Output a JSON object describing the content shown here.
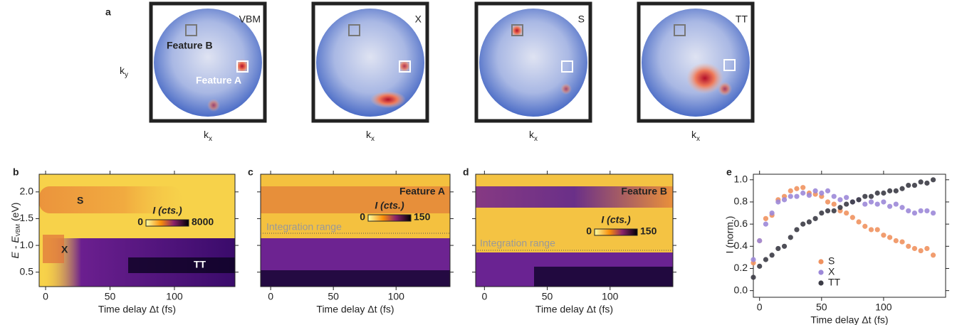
{
  "momentum_maps": {
    "panel": "a",
    "ky_label": {
      "base": "k",
      "sub": "y"
    },
    "kx_label": {
      "base": "k",
      "sub": "x"
    },
    "maps": [
      {
        "label": "VBM",
        "annotations": [
          "Feature B",
          "Feature A"
        ]
      },
      {
        "label": "X"
      },
      {
        "label": "S"
      },
      {
        "label": "TT"
      }
    ]
  },
  "chart_data": [
    {
      "type": "heatmap",
      "panel": "b",
      "xlabel": "Time delay Δt (fs)",
      "ylabel": [
        "E - E",
        "VBM",
        "(eV)"
      ],
      "xlim": [
        -5,
        147
      ],
      "xticks": [
        0,
        50,
        100
      ],
      "ylim": [
        0.23,
        2.33
      ],
      "yticks": [
        0.5,
        {
          "value": 1,
          "label": "1.0"
        },
        1.5,
        {
          "value": 2,
          "label": "2.0"
        }
      ],
      "colorbar": {
        "label": "I (cts.)",
        "min": 0,
        "max": 8000
      },
      "annotations": [
        "S",
        "X",
        "TT"
      ]
    },
    {
      "type": "heatmap",
      "panel": "c",
      "xlabel": "Time delay Δt (fs)",
      "xlim": [
        -8,
        143
      ],
      "xticks": [
        0,
        50,
        100
      ],
      "ylim": [
        0.23,
        2.33
      ],
      "yticks": [
        0.5,
        1,
        1.5,
        2
      ],
      "colorbar": {
        "label": "I (cts.)",
        "min": 0,
        "max": 150
      },
      "annotations": [
        "Feature A",
        "Integration range"
      ]
    },
    {
      "type": "heatmap",
      "panel": "d",
      "xlabel": "Time delay Δt (fs)",
      "xlim": [
        -7,
        150
      ],
      "xticks": [
        0,
        50,
        100
      ],
      "ylim": [
        0.23,
        2.33
      ],
      "yticks": [
        0.5,
        1,
        1.5,
        2
      ],
      "colorbar": {
        "label": "I (cts.)",
        "min": 0,
        "max": 150
      },
      "annotations": [
        "Feature B",
        "Integration range"
      ]
    },
    {
      "type": "scatter",
      "panel": "e",
      "xlabel": "Time delay Δt (fs)",
      "ylabel": "I (norm.)",
      "xlim": [
        -5,
        150
      ],
      "xticks": [
        0,
        50,
        100
      ],
      "ylim": [
        -0.06,
        1.05
      ],
      "yticks": [
        {
          "value": 0,
          "label": "0.0"
        },
        0.2,
        0.4,
        0.6,
        0.8,
        {
          "value": 1,
          "label": "1.0"
        }
      ],
      "legend": "lower center",
      "x": [
        -5,
        0,
        5,
        10,
        15,
        20,
        25,
        30,
        35,
        40,
        45,
        50,
        55,
        60,
        65,
        70,
        75,
        80,
        85,
        90,
        95,
        100,
        105,
        110,
        115,
        120,
        125,
        130,
        135,
        140
      ],
      "series": [
        {
          "name": "S",
          "color": "#f0925f",
          "values": [
            0.25,
            0.45,
            0.65,
            0.68,
            0.82,
            0.85,
            0.9,
            0.92,
            0.93,
            0.88,
            0.87,
            0.85,
            0.8,
            0.78,
            0.72,
            0.7,
            0.66,
            0.62,
            0.58,
            0.55,
            0.55,
            0.5,
            0.48,
            0.45,
            0.44,
            0.4,
            0.38,
            0.36,
            0.38,
            0.32
          ]
        },
        {
          "name": "X",
          "color": "#9c88d8",
          "values": [
            0.28,
            0.45,
            0.6,
            0.7,
            0.8,
            0.82,
            0.85,
            0.85,
            0.88,
            0.86,
            0.9,
            0.88,
            0.9,
            0.85,
            0.82,
            0.84,
            0.8,
            0.82,
            0.78,
            0.8,
            0.78,
            0.8,
            0.76,
            0.78,
            0.75,
            0.72,
            0.7,
            0.72,
            0.72,
            0.7
          ]
        },
        {
          "name": "TT",
          "color": "#3b3b45",
          "values": [
            0.12,
            0.22,
            0.28,
            0.32,
            0.38,
            0.4,
            0.48,
            0.55,
            0.6,
            0.62,
            0.65,
            0.7,
            0.72,
            0.72,
            0.75,
            0.78,
            0.8,
            0.82,
            0.85,
            0.85,
            0.88,
            0.88,
            0.9,
            0.9,
            0.92,
            0.95,
            0.95,
            0.98,
            0.97,
            1.0
          ]
        }
      ]
    }
  ]
}
